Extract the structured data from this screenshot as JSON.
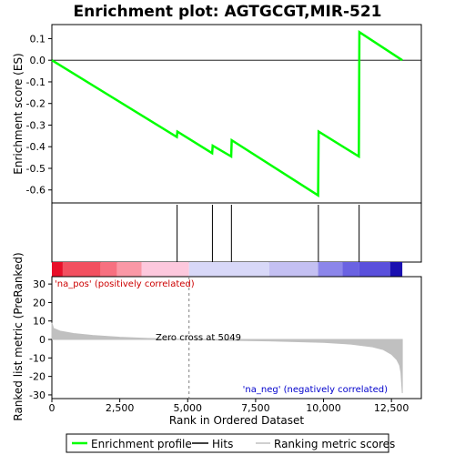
{
  "title": "Enrichment plot: AGTGCGT,MIR-521",
  "es_panel": {
    "ylabel": "Enrichment score (ES)",
    "ylim": [
      -0.66,
      0.165
    ],
    "yticks": [
      0.1,
      0.0,
      -0.1,
      -0.2,
      -0.3,
      -0.4,
      -0.5,
      -0.6
    ],
    "ytick_labels": [
      "0.1",
      "0.0",
      "-0.1",
      "-0.2",
      "-0.3",
      "-0.4",
      "-0.5",
      "-0.6"
    ]
  },
  "metric_panel": {
    "ylabel": "Ranked list metric (PreRanked)",
    "ylim": [
      -32,
      34
    ],
    "yticks": [
      30,
      20,
      10,
      0,
      -10,
      -20,
      -30
    ],
    "ytick_labels": [
      "30",
      "20",
      "10",
      "0",
      "-10",
      "-20",
      "-30"
    ],
    "pos_label": "'na_pos' (positively correlated)",
    "neg_label": "'na_neg' (negatively correlated)",
    "zero_cross_label": "Zero cross at 5049",
    "zero_cross": 5049,
    "xlabel": "Rank in Ordered Dataset",
    "xticks": [
      0,
      2500,
      5000,
      7500,
      10000,
      12500
    ],
    "xtick_labels": [
      "0",
      "2,500",
      "5,000",
      "7,500",
      "10,000",
      "12,500"
    ]
  },
  "legend": {
    "items": [
      {
        "label": "Enrichment profile",
        "kind": "line",
        "color": "#00ff00"
      },
      {
        "label": "Hits",
        "kind": "line",
        "color": "#000000"
      },
      {
        "label": "Ranking metric scores",
        "kind": "line",
        "color": "#c0c0c0"
      }
    ]
  },
  "colors": {
    "enrichment": "#00ff00",
    "hit": "#000000",
    "metric_fill": "#c0c0c0",
    "zero_line": "#808080",
    "pos_text": "#cc0000",
    "neg_text": "#0000cc"
  },
  "chart_data": {
    "type": "line",
    "x_range": [
      0,
      13600
    ],
    "n_genes": 12900,
    "enrichment_profile": {
      "x": [
        0,
        4600,
        4620,
        5900,
        5920,
        6600,
        6620,
        9800,
        9820,
        11300,
        11320,
        12900
      ],
      "y": [
        0.0,
        -0.355,
        -0.33,
        -0.43,
        -0.395,
        -0.445,
        -0.37,
        -0.625,
        -0.33,
        -0.445,
        0.13,
        0.0
      ]
    },
    "hits": [
      4610,
      5910,
      6610,
      9810,
      11310
    ],
    "ranking_metric": {
      "x": [
        0,
        60,
        300,
        800,
        1500,
        2500,
        3500,
        4500,
        5049,
        6000,
        8000,
        10000,
        11000,
        11800,
        12200,
        12500,
        12700,
        12800,
        12850,
        12900
      ],
      "y": [
        9.0,
        6.0,
        4.5,
        3.2,
        2.2,
        1.2,
        0.6,
        0.2,
        0.0,
        -0.3,
        -0.8,
        -1.6,
        -2.5,
        -4.0,
        -5.5,
        -8.0,
        -11.0,
        -14.0,
        -18.0,
        -29.0
      ]
    },
    "heatmap_segments": [
      {
        "from": 0,
        "to": 400,
        "color": "#e8102a"
      },
      {
        "from": 400,
        "to": 1800,
        "color": "#f25060"
      },
      {
        "from": 1800,
        "to": 2400,
        "color": "#f77080"
      },
      {
        "from": 2400,
        "to": 3300,
        "color": "#fa98a6"
      },
      {
        "from": 3300,
        "to": 5049,
        "color": "#fdc8dd"
      },
      {
        "from": 5049,
        "to": 8000,
        "color": "#d8d8f8"
      },
      {
        "from": 8000,
        "to": 9800,
        "color": "#c4c0f2"
      },
      {
        "from": 9800,
        "to": 10700,
        "color": "#8c86ea"
      },
      {
        "from": 10700,
        "to": 11300,
        "color": "#6a62e2"
      },
      {
        "from": 11300,
        "to": 12450,
        "color": "#5a50dc"
      },
      {
        "from": 12450,
        "to": 12900,
        "color": "#1a10b0"
      }
    ]
  }
}
